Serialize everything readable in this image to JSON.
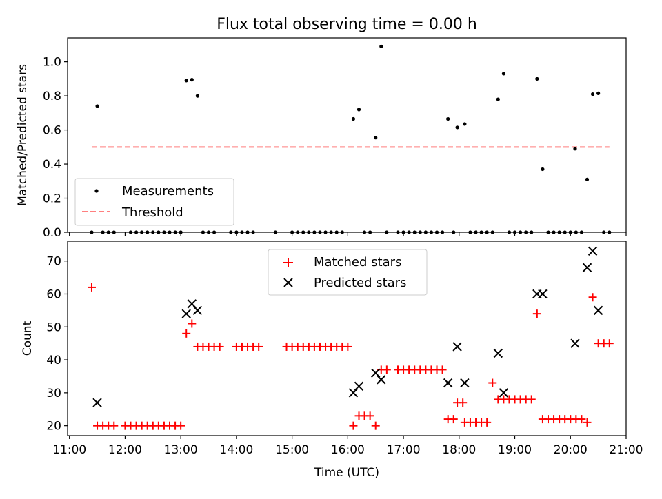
{
  "chart_data": [
    {
      "type": "scatter",
      "title": "Flux total observing time = 0.00 h",
      "ylabel": "Matched/Predicted stars",
      "xlim": [
        "10:58",
        "21:00"
      ],
      "ylim": [
        0,
        1.14
      ],
      "yticks": [
        "0.0",
        "0.2",
        "0.4",
        "0.6",
        "0.8",
        "1.0"
      ],
      "grid": false,
      "legend_position": "lower-left",
      "series": [
        {
          "name": "Measurements",
          "color": "#000000",
          "points": [
            [
              "11:24",
              0
            ],
            [
              "11:30",
              0.74
            ],
            [
              "11:36",
              0
            ],
            [
              "11:42",
              0
            ],
            [
              "11:48",
              0
            ],
            [
              "12:06",
              0
            ],
            [
              "12:12",
              0
            ],
            [
              "12:18",
              0
            ],
            [
              "12:24",
              0
            ],
            [
              "12:30",
              0
            ],
            [
              "12:36",
              0
            ],
            [
              "12:42",
              0
            ],
            [
              "12:48",
              0
            ],
            [
              "12:54",
              0
            ],
            [
              "13:00",
              0
            ],
            [
              "13:06",
              0.89
            ],
            [
              "13:12",
              0.895
            ],
            [
              "13:18",
              0.8
            ],
            [
              "13:24",
              0
            ],
            [
              "13:30",
              0
            ],
            [
              "13:36",
              0
            ],
            [
              "13:54",
              0
            ],
            [
              "14:00",
              0
            ],
            [
              "14:06",
              0
            ],
            [
              "14:12",
              0
            ],
            [
              "14:18",
              0
            ],
            [
              "14:42",
              0
            ],
            [
              "15:00",
              0
            ],
            [
              "15:06",
              0
            ],
            [
              "15:12",
              0
            ],
            [
              "15:18",
              0
            ],
            [
              "15:24",
              0
            ],
            [
              "15:30",
              0
            ],
            [
              "15:36",
              0
            ],
            [
              "15:42",
              0
            ],
            [
              "15:48",
              0
            ],
            [
              "15:54",
              0
            ],
            [
              "16:06",
              0.665
            ],
            [
              "16:12",
              0.72
            ],
            [
              "16:18",
              0
            ],
            [
              "16:24",
              0
            ],
            [
              "16:30",
              0.555
            ],
            [
              "16:36",
              1.09
            ],
            [
              "16:42",
              0
            ],
            [
              "16:54",
              0
            ],
            [
              "17:00",
              0
            ],
            [
              "17:06",
              0
            ],
            [
              "17:12",
              0
            ],
            [
              "17:18",
              0
            ],
            [
              "17:24",
              0
            ],
            [
              "17:30",
              0
            ],
            [
              "17:36",
              0
            ],
            [
              "17:42",
              0
            ],
            [
              "17:48",
              0.665
            ],
            [
              "17:54",
              0
            ],
            [
              "17:58",
              0.615
            ],
            [
              "18:06",
              0.635
            ],
            [
              "18:12",
              0
            ],
            [
              "18:18",
              0
            ],
            [
              "18:24",
              0
            ],
            [
              "18:30",
              0
            ],
            [
              "18:36",
              0
            ],
            [
              "18:42",
              0.78
            ],
            [
              "18:48",
              0.93
            ],
            [
              "18:54",
              0
            ],
            [
              "19:00",
              0
            ],
            [
              "19:06",
              0
            ],
            [
              "19:12",
              0
            ],
            [
              "19:18",
              0
            ],
            [
              "19:24",
              0.9
            ],
            [
              "19:30",
              0.37
            ],
            [
              "19:36",
              0
            ],
            [
              "19:42",
              0
            ],
            [
              "19:48",
              0
            ],
            [
              "19:54",
              0
            ],
            [
              "20:00",
              0
            ],
            [
              "20:06",
              0
            ],
            [
              "20:05",
              0.49
            ],
            [
              "20:12",
              0
            ],
            [
              "20:18",
              0.31
            ],
            [
              "20:24",
              0.81
            ],
            [
              "20:30",
              0.815
            ],
            [
              "20:36",
              0
            ],
            [
              "20:42",
              0
            ]
          ]
        },
        {
          "name": "Threshold",
          "color": "#ff7f7f",
          "style": "dashed",
          "x": [
            "11:24",
            "20:42"
          ],
          "values": [
            0.5,
            0.5
          ]
        }
      ]
    },
    {
      "type": "scatter",
      "xlabel": "Time (UTC)",
      "ylabel": "Count",
      "xlim": [
        "10:58",
        "21:00"
      ],
      "ylim": [
        17,
        76
      ],
      "xticks": [
        "11:00",
        "12:00",
        "13:00",
        "14:00",
        "15:00",
        "16:00",
        "17:00",
        "18:00",
        "19:00",
        "20:00",
        "21:00"
      ],
      "yticks": [
        "20",
        "30",
        "40",
        "50",
        "60",
        "70"
      ],
      "grid": false,
      "legend_position": "upper-center",
      "series": [
        {
          "name": "Matched stars",
          "color": "#ff0000",
          "marker": "plus",
          "points": [
            [
              "11:24",
              62
            ],
            [
              "11:30",
              20
            ],
            [
              "11:36",
              20
            ],
            [
              "11:42",
              20
            ],
            [
              "11:48",
              20
            ],
            [
              "12:00",
              20
            ],
            [
              "12:06",
              20
            ],
            [
              "12:12",
              20
            ],
            [
              "12:18",
              20
            ],
            [
              "12:24",
              20
            ],
            [
              "12:30",
              20
            ],
            [
              "12:36",
              20
            ],
            [
              "12:42",
              20
            ],
            [
              "12:48",
              20
            ],
            [
              "12:54",
              20
            ],
            [
              "13:00",
              20
            ],
            [
              "13:06",
              48
            ],
            [
              "13:12",
              51
            ],
            [
              "13:18",
              44
            ],
            [
              "13:24",
              44
            ],
            [
              "13:30",
              44
            ],
            [
              "13:36",
              44
            ],
            [
              "13:42",
              44
            ],
            [
              "14:00",
              44
            ],
            [
              "14:06",
              44
            ],
            [
              "14:12",
              44
            ],
            [
              "14:18",
              44
            ],
            [
              "14:24",
              44
            ],
            [
              "14:54",
              44
            ],
            [
              "15:00",
              44
            ],
            [
              "15:06",
              44
            ],
            [
              "15:12",
              44
            ],
            [
              "15:18",
              44
            ],
            [
              "15:24",
              44
            ],
            [
              "15:30",
              44
            ],
            [
              "15:36",
              44
            ],
            [
              "15:42",
              44
            ],
            [
              "15:48",
              44
            ],
            [
              "15:54",
              44
            ],
            [
              "16:00",
              44
            ],
            [
              "16:06",
              20
            ],
            [
              "16:12",
              23
            ],
            [
              "16:18",
              23
            ],
            [
              "16:24",
              23
            ],
            [
              "16:30",
              20
            ],
            [
              "16:36",
              37
            ],
            [
              "16:42",
              37
            ],
            [
              "16:54",
              37
            ],
            [
              "17:00",
              37
            ],
            [
              "17:06",
              37
            ],
            [
              "17:12",
              37
            ],
            [
              "17:18",
              37
            ],
            [
              "17:24",
              37
            ],
            [
              "17:30",
              37
            ],
            [
              "17:36",
              37
            ],
            [
              "17:42",
              37
            ],
            [
              "17:48",
              22
            ],
            [
              "17:54",
              22
            ],
            [
              "17:58",
              27
            ],
            [
              "18:04",
              27
            ],
            [
              "18:06",
              21
            ],
            [
              "18:12",
              21
            ],
            [
              "18:18",
              21
            ],
            [
              "18:24",
              21
            ],
            [
              "18:30",
              21
            ],
            [
              "18:36",
              33
            ],
            [
              "18:42",
              28
            ],
            [
              "18:48",
              28
            ],
            [
              "18:54",
              28
            ],
            [
              "19:00",
              28
            ],
            [
              "19:06",
              28
            ],
            [
              "19:12",
              28
            ],
            [
              "19:18",
              28
            ],
            [
              "19:24",
              54
            ],
            [
              "19:30",
              22
            ],
            [
              "19:36",
              22
            ],
            [
              "19:42",
              22
            ],
            [
              "19:48",
              22
            ],
            [
              "19:54",
              22
            ],
            [
              "20:00",
              22
            ],
            [
              "20:06",
              22
            ],
            [
              "20:12",
              22
            ],
            [
              "20:18",
              21
            ],
            [
              "20:24",
              59
            ],
            [
              "20:30",
              45
            ],
            [
              "20:36",
              45
            ],
            [
              "20:42",
              45
            ]
          ]
        },
        {
          "name": "Predicted stars",
          "color": "#000000",
          "marker": "x",
          "points": [
            [
              "11:30",
              27
            ],
            [
              "13:06",
              54
            ],
            [
              "13:12",
              57
            ],
            [
              "13:18",
              55
            ],
            [
              "16:06",
              30
            ],
            [
              "16:12",
              32
            ],
            [
              "16:30",
              36
            ],
            [
              "16:36",
              34
            ],
            [
              "17:48",
              33
            ],
            [
              "17:58",
              44
            ],
            [
              "18:06",
              33
            ],
            [
              "18:42",
              42
            ],
            [
              "18:48",
              30
            ],
            [
              "19:24",
              60
            ],
            [
              "19:30",
              60
            ],
            [
              "20:05",
              45
            ],
            [
              "20:18",
              68
            ],
            [
              "20:24",
              73
            ],
            [
              "20:30",
              55
            ]
          ]
        }
      ]
    }
  ]
}
